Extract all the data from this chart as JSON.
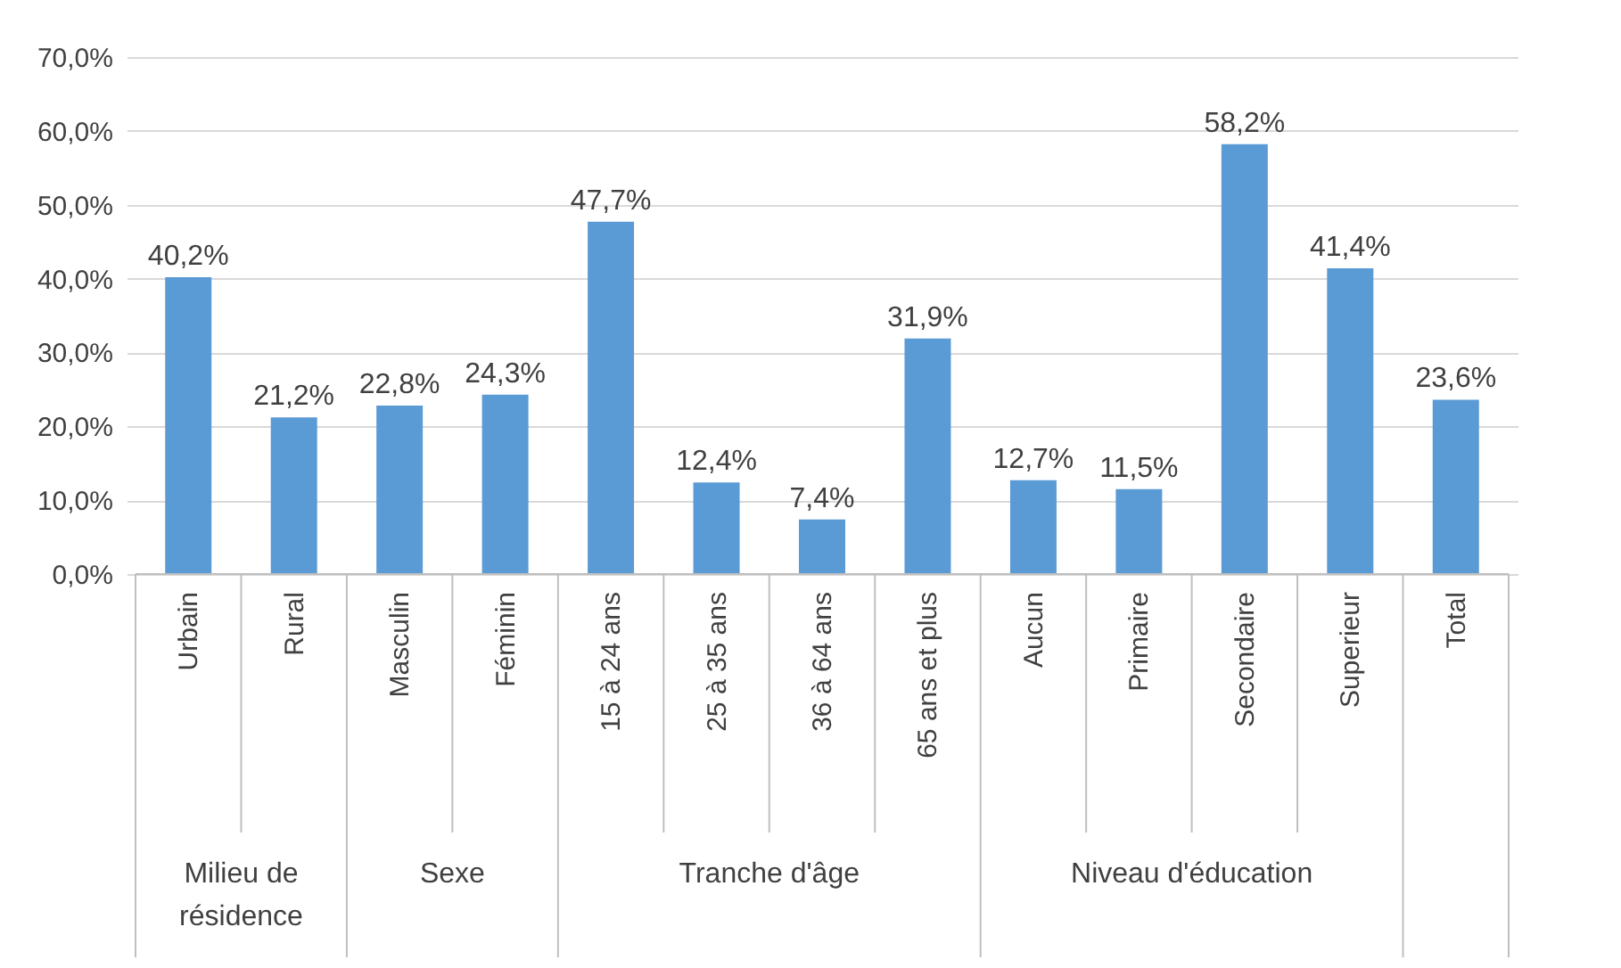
{
  "chart_data": {
    "type": "bar",
    "categories": [
      "Urbain",
      "Rural",
      "Masculin",
      "Féminin",
      "15 à 24 ans",
      "25 à 35 ans",
      "36 à 64 ans",
      "65 ans et plus",
      "Aucun",
      "Primaire",
      "Secondaire",
      "Superieur",
      "Total"
    ],
    "values": [
      40.2,
      21.2,
      22.8,
      24.3,
      47.7,
      12.4,
      7.4,
      31.9,
      12.7,
      11.5,
      58.2,
      41.4,
      23.6
    ],
    "value_labels": [
      "40,2%",
      "21,2%",
      "22,8%",
      "24,3%",
      "47,7%",
      "12,4%",
      "7,4%",
      "31,9%",
      "12,7%",
      "11,5%",
      "58,2%",
      "41,4%",
      "23,6%"
    ],
    "color": "#5b9bd5",
    "ylim": [
      0,
      70
    ],
    "yticks": [
      {
        "value": 0,
        "label": "0,0%"
      },
      {
        "value": 10,
        "label": "10,0%"
      },
      {
        "value": 20,
        "label": "20,0%"
      },
      {
        "value": 30,
        "label": "30,0%"
      },
      {
        "value": 40,
        "label": "40,0%"
      },
      {
        "value": 50,
        "label": "50,0%"
      },
      {
        "value": 60,
        "label": "60,0%"
      },
      {
        "value": 70,
        "label": "70,0%"
      }
    ],
    "grid": "y",
    "annotations": [
      "Milieu de\nrésidence",
      "Sexe",
      "Tranche d'âge",
      "Niveau d'éducation"
    ]
  }
}
